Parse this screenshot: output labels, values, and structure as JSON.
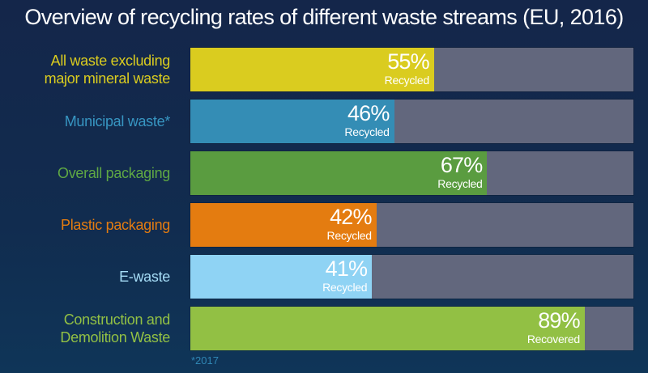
{
  "chart_data": {
    "type": "bar",
    "orientation": "horizontal",
    "title": "Overview of  recycling rates of different waste streams (EU, 2016)",
    "xlim": [
      0,
      100
    ],
    "unit": "%",
    "categories": [
      "All waste excluding\nmajor mineral waste",
      "Municipal waste*",
      "Overall packaging",
      "Plastic packaging",
      "E-waste",
      "Construction and\nDemolition Waste"
    ],
    "values": [
      55,
      46,
      67,
      42,
      41,
      89
    ],
    "value_labels": [
      "55%",
      "46%",
      "67%",
      "42%",
      "41%",
      "89%"
    ],
    "sub_labels": [
      "Recycled",
      "Recycled",
      "Recycled",
      "Recycled",
      "Recycled",
      "Recovered"
    ],
    "colors": [
      "#dacc1f",
      "#348db5",
      "#5a9c40",
      "#e47c10",
      "#8fd3f4",
      "#92c044"
    ],
    "label_colors": [
      "#dacc1f",
      "#3796c2",
      "#5fa844",
      "#e47c10",
      "#a5dcf6",
      "#92c044"
    ],
    "track_color": "#62677d",
    "footnote": "*2017"
  }
}
